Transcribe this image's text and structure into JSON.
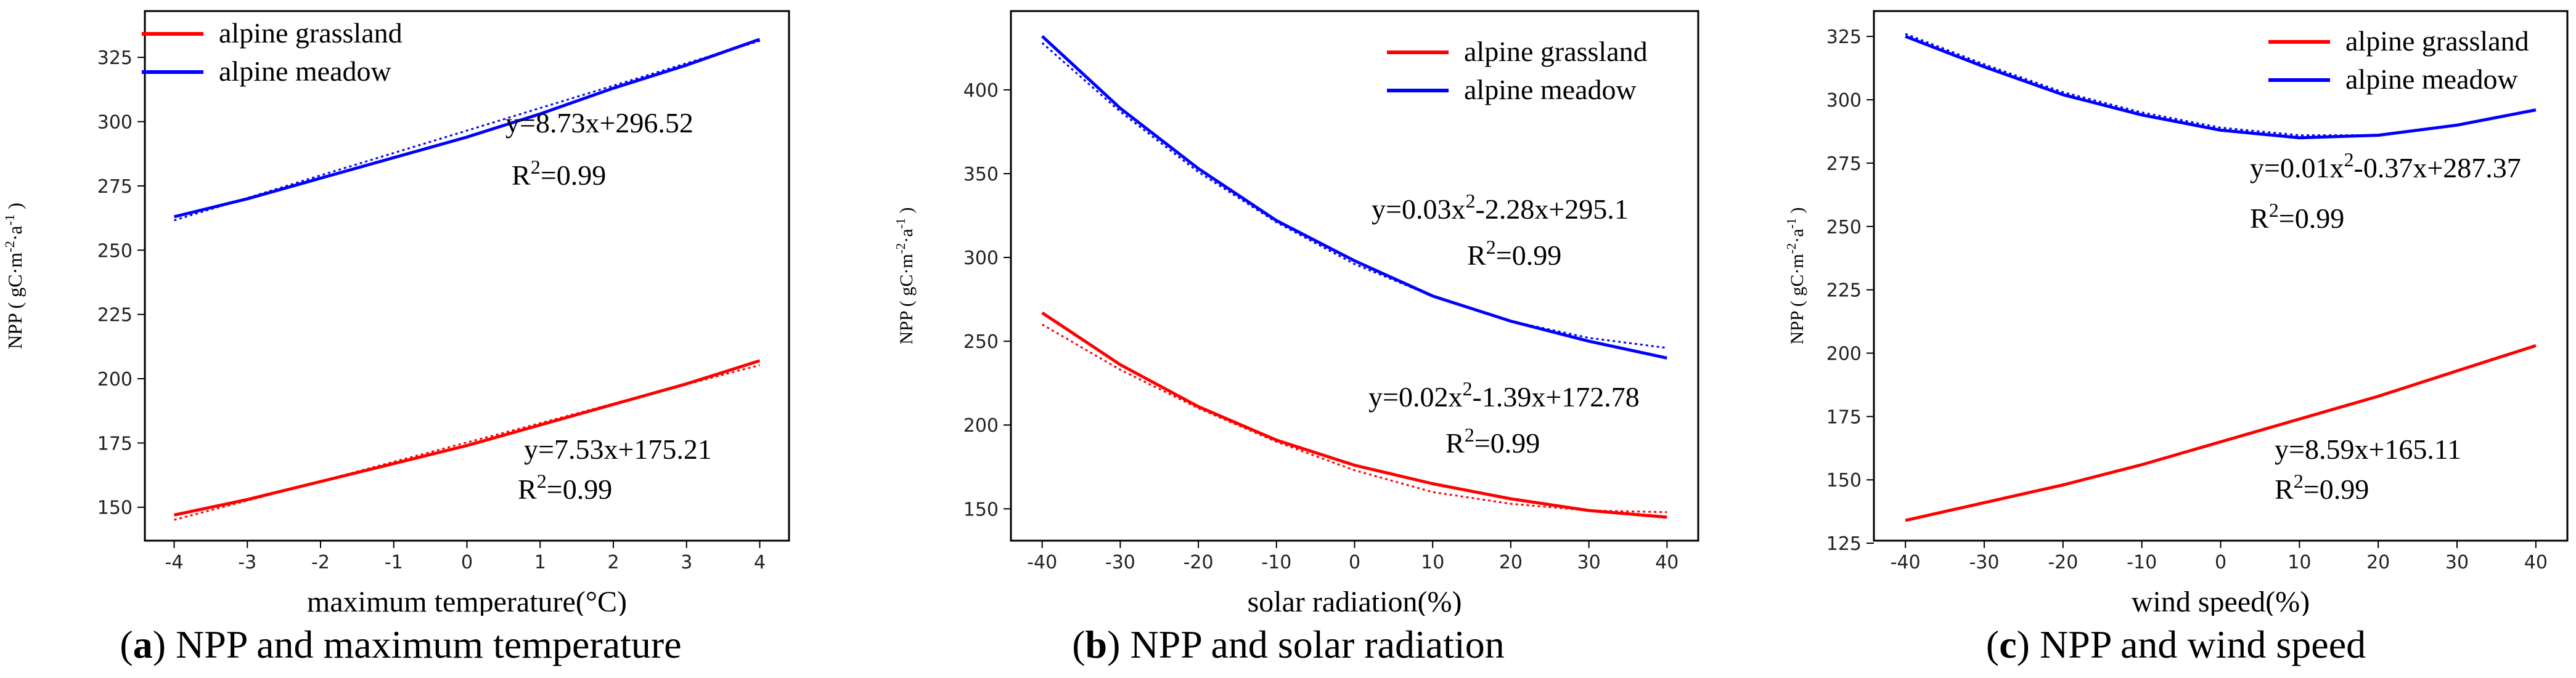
{
  "colors": {
    "grassland": "#ff0000",
    "meadow": "#0000ff",
    "axis": "#000000",
    "background": "#ffffff"
  },
  "legend_labels": [
    "alpine grassland",
    "alpine meadow"
  ],
  "chart_data": [
    {
      "type": "line",
      "panel": "a",
      "xlabel": "maximum temperature(°C)",
      "ylabel": "NPP ( gC·m⁻²·a⁻¹ )",
      "xlim": [
        -4.4,
        4.4
      ],
      "ylim": [
        137,
        343
      ],
      "xticks": [
        -4,
        -3,
        -2,
        -1,
        0,
        1,
        2,
        3,
        4
      ],
      "yticks": [
        150,
        175,
        200,
        225,
        250,
        275,
        300,
        325
      ],
      "legend": "top-left",
      "series": [
        {
          "name": "alpine grassland",
          "key": "grassland",
          "x": [
            -4,
            -3,
            -2,
            -1,
            0,
            1,
            2,
            3,
            4
          ],
          "y": [
            147,
            153,
            160,
            167,
            174,
            182,
            190,
            198,
            207
          ],
          "fit": [
            145.1,
            152.6,
            160.1,
            167.7,
            175.2,
            182.7,
            190.3,
            197.8,
            205.3
          ]
        },
        {
          "name": "alpine meadow",
          "key": "meadow",
          "x": [
            -4,
            -3,
            -2,
            -1,
            0,
            1,
            2,
            3,
            4
          ],
          "y": [
            263,
            270,
            278,
            286,
            294,
            303,
            313,
            322,
            332
          ],
          "fit": [
            261.6,
            270.3,
            279.1,
            287.8,
            296.5,
            305.3,
            314.0,
            322.7,
            331.4
          ]
        }
      ],
      "annotations": [
        {
          "eq": "y=8.73x+296.52",
          "r2": "0.99"
        },
        {
          "eq": "y=7.53x+175.21",
          "r2": "0.99"
        }
      ],
      "caption_letter": "a",
      "caption_text": " NPP and maximum temperature"
    },
    {
      "type": "line",
      "panel": "b",
      "xlabel": "solar radiation(%)",
      "ylabel": "NPP ( gC·m⁻²·a⁻¹ )",
      "xlim": [
        -44,
        44
      ],
      "ylim": [
        131,
        447
      ],
      "xticks": [
        -40,
        -30,
        -20,
        -10,
        0,
        10,
        20,
        30,
        40
      ],
      "yticks": [
        150,
        200,
        250,
        300,
        350,
        400
      ],
      "legend": "top-right",
      "series": [
        {
          "name": "alpine grassland",
          "key": "grassland",
          "x": [
            -40,
            -30,
            -20,
            -10,
            0,
            10,
            20,
            30,
            40
          ],
          "y": [
            267,
            236,
            211,
            191,
            176,
            165,
            156,
            149,
            145
          ],
          "fit": [
            260,
            233,
            210,
            190,
            173,
            160,
            153,
            149,
            148
          ]
        },
        {
          "name": "alpine meadow",
          "key": "meadow",
          "x": [
            -40,
            -30,
            -20,
            -10,
            0,
            10,
            20,
            30,
            40
          ],
          "y": [
            432,
            389,
            353,
            322,
            298,
            277,
            262,
            250,
            240
          ],
          "fit": [
            428,
            387,
            351,
            321,
            296,
            277,
            262,
            252,
            246
          ]
        }
      ],
      "annotations": [
        {
          "eq": "y=0.03x²-2.28x+295.1",
          "r2": "0.99"
        },
        {
          "eq": "y=0.02x²-1.39x+172.78",
          "r2": "0.99"
        }
      ],
      "caption_letter": "b",
      "caption_text": " NPP and solar radiation"
    },
    {
      "type": "line",
      "panel": "c",
      "xlabel": "wind speed(%)",
      "ylabel": "NPP ( gC·m⁻²·a⁻¹ )",
      "xlim": [
        -44,
        44
      ],
      "ylim": [
        126,
        335
      ],
      "xticks": [
        -40,
        -30,
        -20,
        -10,
        0,
        10,
        20,
        30,
        40
      ],
      "yticks": [
        125,
        150,
        175,
        200,
        225,
        250,
        275,
        300,
        325
      ],
      "legend": "top-right",
      "series": [
        {
          "name": "alpine grassland",
          "key": "grassland",
          "x": [
            -40,
            -30,
            -20,
            -10,
            0,
            10,
            20,
            30,
            40
          ],
          "y": [
            134,
            141,
            148,
            156,
            165,
            174,
            183,
            193,
            203
          ],
          "fit": null
        },
        {
          "name": "alpine meadow",
          "key": "meadow",
          "x": [
            -40,
            -30,
            -20,
            -10,
            0,
            10,
            20,
            30,
            40
          ],
          "y": [
            325,
            313,
            302,
            294,
            288,
            285,
            286,
            290,
            296
          ],
          "fit": [
            326,
            314,
            303,
            295,
            289,
            286,
            286,
            290,
            296
          ]
        }
      ],
      "annotations": [
        {
          "eq": "y=0.01x²-0.37x+287.37",
          "r2": "0.99"
        },
        {
          "eq": "y=8.59x+165.11",
          "r2": "0.99"
        }
      ],
      "caption_letter": "c",
      "caption_text": " NPP and wind speed"
    }
  ]
}
